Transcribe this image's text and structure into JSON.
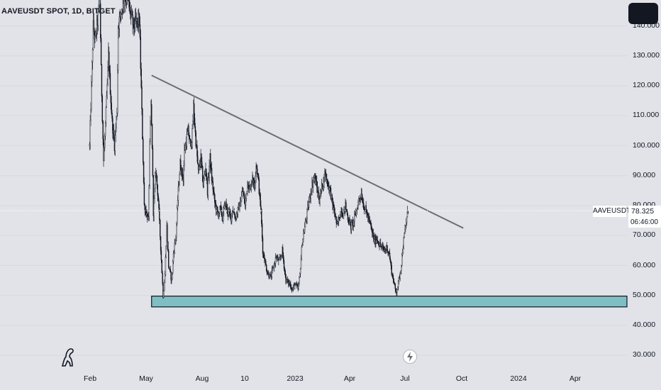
{
  "header": {
    "title": "AAVEUSDT SPOT, 1D, BITGET"
  },
  "chart_data": {
    "type": "candlestick",
    "symbol": "AAVEUSDT",
    "last_price": "78.325",
    "countdown": "06:46:00",
    "y_axis": {
      "ylim": [
        25,
        147
      ],
      "ticks": [
        "30.000",
        "40.000",
        "50.000",
        "60.000",
        "70.000",
        "80.000",
        "90.000",
        "100.000",
        "110.000",
        "120.000",
        "130.000",
        "140.000"
      ]
    },
    "x_axis": {
      "ticks": [
        "Feb",
        "May",
        "Aug",
        "10",
        "2023",
        "Apr",
        "Jul",
        "Oct",
        "2024",
        "Apr"
      ]
    },
    "price_path": [
      [
        "2022-01-28",
        100
      ],
      [
        "2022-02-03",
        140
      ],
      [
        "2022-02-06",
        135
      ],
      [
        "2022-02-14",
        148
      ],
      [
        "2022-02-16",
        125
      ],
      [
        "2022-02-20",
        95
      ],
      [
        "2022-02-25",
        115
      ],
      [
        "2022-02-28",
        130
      ],
      [
        "2022-03-06",
        108
      ],
      [
        "2022-03-10",
        100
      ],
      [
        "2022-03-14",
        112
      ],
      [
        "2022-03-16",
        140
      ],
      [
        "2022-03-26",
        150
      ],
      [
        "2022-04-01",
        148
      ],
      [
        "2022-04-10",
        140
      ],
      [
        "2022-04-20",
        142
      ],
      [
        "2022-04-28",
        80
      ],
      [
        "2022-05-05",
        75
      ],
      [
        "2022-05-07",
        100
      ],
      [
        "2022-05-09",
        113
      ],
      [
        "2022-05-11",
        100
      ],
      [
        "2022-05-13",
        78
      ],
      [
        "2022-05-17",
        92
      ],
      [
        "2022-05-21",
        82
      ],
      [
        "2022-05-29",
        50
      ],
      [
        "2022-06-01",
        57
      ],
      [
        "2022-06-04",
        73
      ],
      [
        "2022-06-07",
        60
      ],
      [
        "2022-06-12",
        55
      ],
      [
        "2022-06-15",
        64
      ],
      [
        "2022-06-19",
        70
      ],
      [
        "2022-06-22",
        82
      ],
      [
        "2022-06-26",
        94
      ],
      [
        "2022-07-01",
        89
      ],
      [
        "2022-07-03",
        98
      ],
      [
        "2022-07-09",
        105
      ],
      [
        "2022-07-13",
        100
      ],
      [
        "2022-07-16",
        104
      ],
      [
        "2022-07-18",
        113
      ],
      [
        "2022-07-21",
        104
      ],
      [
        "2022-07-26",
        91
      ],
      [
        "2022-07-30",
        96
      ],
      [
        "2022-08-03",
        87
      ],
      [
        "2022-08-07",
        93
      ],
      [
        "2022-08-10",
        85
      ],
      [
        "2022-08-14",
        96
      ],
      [
        "2022-08-17",
        89
      ],
      [
        "2022-08-22",
        81
      ],
      [
        "2022-08-27",
        77
      ],
      [
        "2022-08-31",
        79
      ],
      [
        "2022-09-04",
        76
      ],
      [
        "2022-09-08",
        81
      ],
      [
        "2022-09-12",
        78
      ],
      [
        "2022-09-18",
        76
      ],
      [
        "2022-09-20",
        79
      ],
      [
        "2022-09-25",
        76
      ],
      [
        "2022-10-02",
        80
      ],
      [
        "2022-10-07",
        85
      ],
      [
        "2022-10-11",
        80
      ],
      [
        "2022-10-15",
        88
      ],
      [
        "2022-10-19",
        85
      ],
      [
        "2022-10-23",
        90
      ],
      [
        "2022-10-26",
        86
      ],
      [
        "2022-10-29",
        94
      ],
      [
        "2022-11-01",
        90
      ],
      [
        "2022-11-06",
        78
      ],
      [
        "2022-11-09",
        65
      ],
      [
        "2022-11-12",
        62
      ],
      [
        "2022-11-16",
        58
      ],
      [
        "2022-11-22",
        56
      ],
      [
        "2022-11-26",
        59
      ],
      [
        "2022-12-01",
        63
      ],
      [
        "2022-12-06",
        61
      ],
      [
        "2022-12-11",
        65
      ],
      [
        "2022-12-17",
        55
      ],
      [
        "2022-12-23",
        54
      ],
      [
        "2022-12-28",
        52
      ],
      [
        "2023-01-01",
        54
      ],
      [
        "2023-01-06",
        52
      ],
      [
        "2023-01-09",
        57
      ],
      [
        "2023-01-13",
        68
      ],
      [
        "2023-01-18",
        74
      ],
      [
        "2023-01-23",
        80
      ],
      [
        "2023-01-28",
        86
      ],
      [
        "2023-02-02",
        90
      ],
      [
        "2023-02-06",
        86
      ],
      [
        "2023-02-10",
        82
      ],
      [
        "2023-02-14",
        86
      ],
      [
        "2023-02-20",
        91
      ],
      [
        "2023-02-23",
        88
      ],
      [
        "2023-02-28",
        85
      ],
      [
        "2023-03-04",
        80
      ],
      [
        "2023-03-08",
        77
      ],
      [
        "2023-03-11",
        73
      ],
      [
        "2023-03-15",
        76
      ],
      [
        "2023-03-18",
        79
      ],
      [
        "2023-03-21",
        77
      ],
      [
        "2023-03-25",
        80
      ],
      [
        "2023-03-29",
        76
      ],
      [
        "2023-04-03",
        73
      ],
      [
        "2023-04-08",
        75
      ],
      [
        "2023-04-13",
        79
      ],
      [
        "2023-04-16",
        82
      ],
      [
        "2023-04-20",
        84
      ],
      [
        "2023-04-24",
        80
      ],
      [
        "2023-04-28",
        78
      ],
      [
        "2023-05-03",
        75
      ],
      [
        "2023-05-08",
        71
      ],
      [
        "2023-05-12",
        68
      ],
      [
        "2023-05-16",
        69
      ],
      [
        "2023-05-20",
        67
      ],
      [
        "2023-05-24",
        66
      ],
      [
        "2023-05-28",
        65
      ],
      [
        "2023-06-01",
        66
      ],
      [
        "2023-06-05",
        64
      ],
      [
        "2023-06-09",
        58
      ],
      [
        "2023-06-13",
        54
      ],
      [
        "2023-06-16",
        51
      ],
      [
        "2023-06-20",
        54
      ],
      [
        "2023-06-24",
        59
      ],
      [
        "2023-06-27",
        65
      ],
      [
        "2023-06-30",
        70
      ],
      [
        "2023-07-02",
        73
      ],
      [
        "2023-07-04",
        76
      ],
      [
        "2023-07-06",
        78.3
      ]
    ],
    "annotations": {
      "trendline": [
        [
          "2022-05-10",
          123.5
        ],
        [
          "2023-10-05",
          72.5
        ]
      ],
      "support_zone": {
        "from": "2022-05-10",
        "y_range": [
          46.2,
          49.8
        ],
        "color": "#7fbfc4"
      }
    },
    "colors": {
      "background": "#e1e3e8",
      "candles": "#131722",
      "trendline": "#6b6f78",
      "grid": "#d6d9df"
    }
  }
}
